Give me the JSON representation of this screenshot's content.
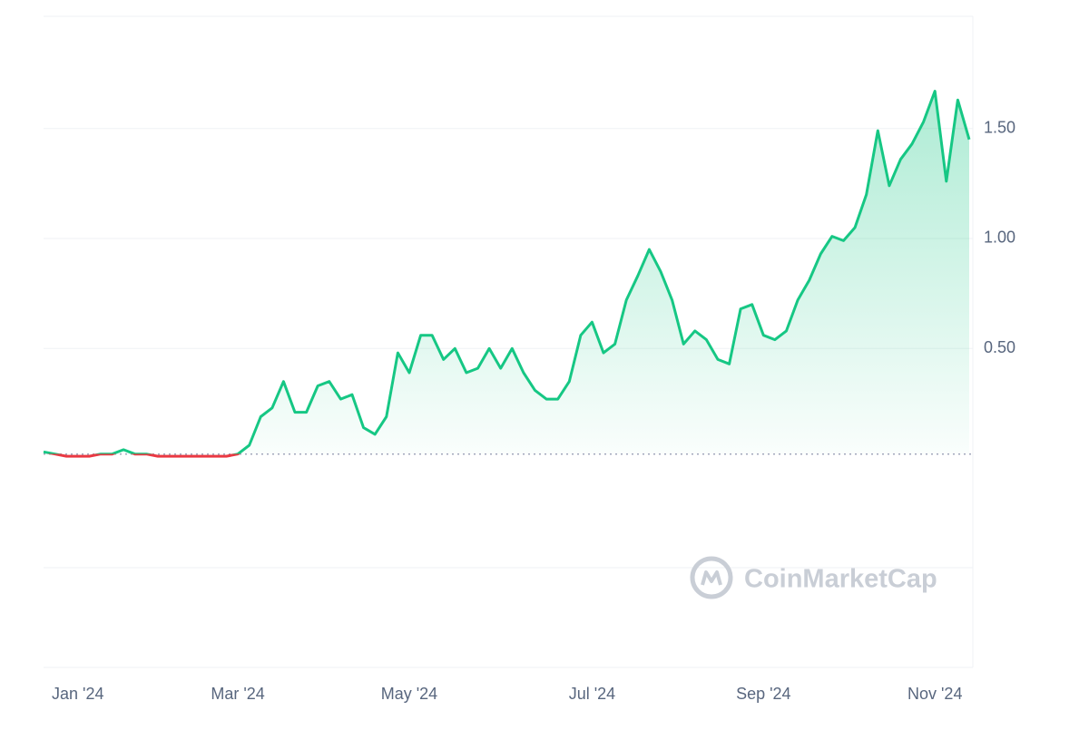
{
  "chart_data": {
    "type": "line",
    "categories": [
      null,
      null,
      null,
      "Jan '24",
      null,
      null,
      null,
      null,
      null,
      null,
      null,
      null,
      null,
      null,
      null,
      null,
      null,
      "Mar '24",
      null,
      null,
      null,
      null,
      null,
      null,
      null,
      null,
      null,
      null,
      null,
      null,
      null,
      null,
      "May '24",
      null,
      null,
      null,
      null,
      null,
      null,
      null,
      null,
      null,
      null,
      null,
      null,
      null,
      null,
      null,
      "Jul '24",
      null,
      null,
      null,
      null,
      null,
      null,
      null,
      null,
      null,
      null,
      null,
      null,
      null,
      null,
      "Sep '24",
      null,
      null,
      null,
      null,
      null,
      null,
      null,
      null,
      null,
      null,
      null,
      null,
      null,
      null,
      "Nov '24",
      null,
      null,
      null
    ],
    "values": [
      0.03,
      0.02,
      0.01,
      0.01,
      0.01,
      0.02,
      0.02,
      0.04,
      0.02,
      0.02,
      0.01,
      0.01,
      0.01,
      0.01,
      0.01,
      0.01,
      0.01,
      0.02,
      0.06,
      0.19,
      0.23,
      0.35,
      0.21,
      0.21,
      0.33,
      0.35,
      0.27,
      0.29,
      0.14,
      0.11,
      0.19,
      0.48,
      0.39,
      0.56,
      0.56,
      0.45,
      0.5,
      0.39,
      0.41,
      0.5,
      0.41,
      0.5,
      0.39,
      0.31,
      0.27,
      0.27,
      0.35,
      0.56,
      0.62,
      0.48,
      0.52,
      0.72,
      0.83,
      0.95,
      0.85,
      0.72,
      0.52,
      0.58,
      0.54,
      0.45,
      0.43,
      0.68,
      0.7,
      0.56,
      0.54,
      0.58,
      0.72,
      0.81,
      0.93,
      1.01,
      0.99,
      1.05,
      1.2,
      1.49,
      1.24,
      1.36,
      1.43,
      1.53,
      1.67,
      1.26,
      1.63,
      1.45
    ],
    "color": "#16c784",
    "negative_color": "#ea3943",
    "reference_line": 0.02,
    "ylim": [
      -0.95,
      2.01
    ],
    "yticks": [
      {
        "value": 0.5,
        "label": "0.50"
      },
      {
        "value": 1,
        "label": "1.00"
      },
      {
        "value": 1.5,
        "label": "1.50"
      }
    ],
    "grid": true,
    "y_axis_side": "right",
    "watermark": "CoinMarketCap"
  }
}
